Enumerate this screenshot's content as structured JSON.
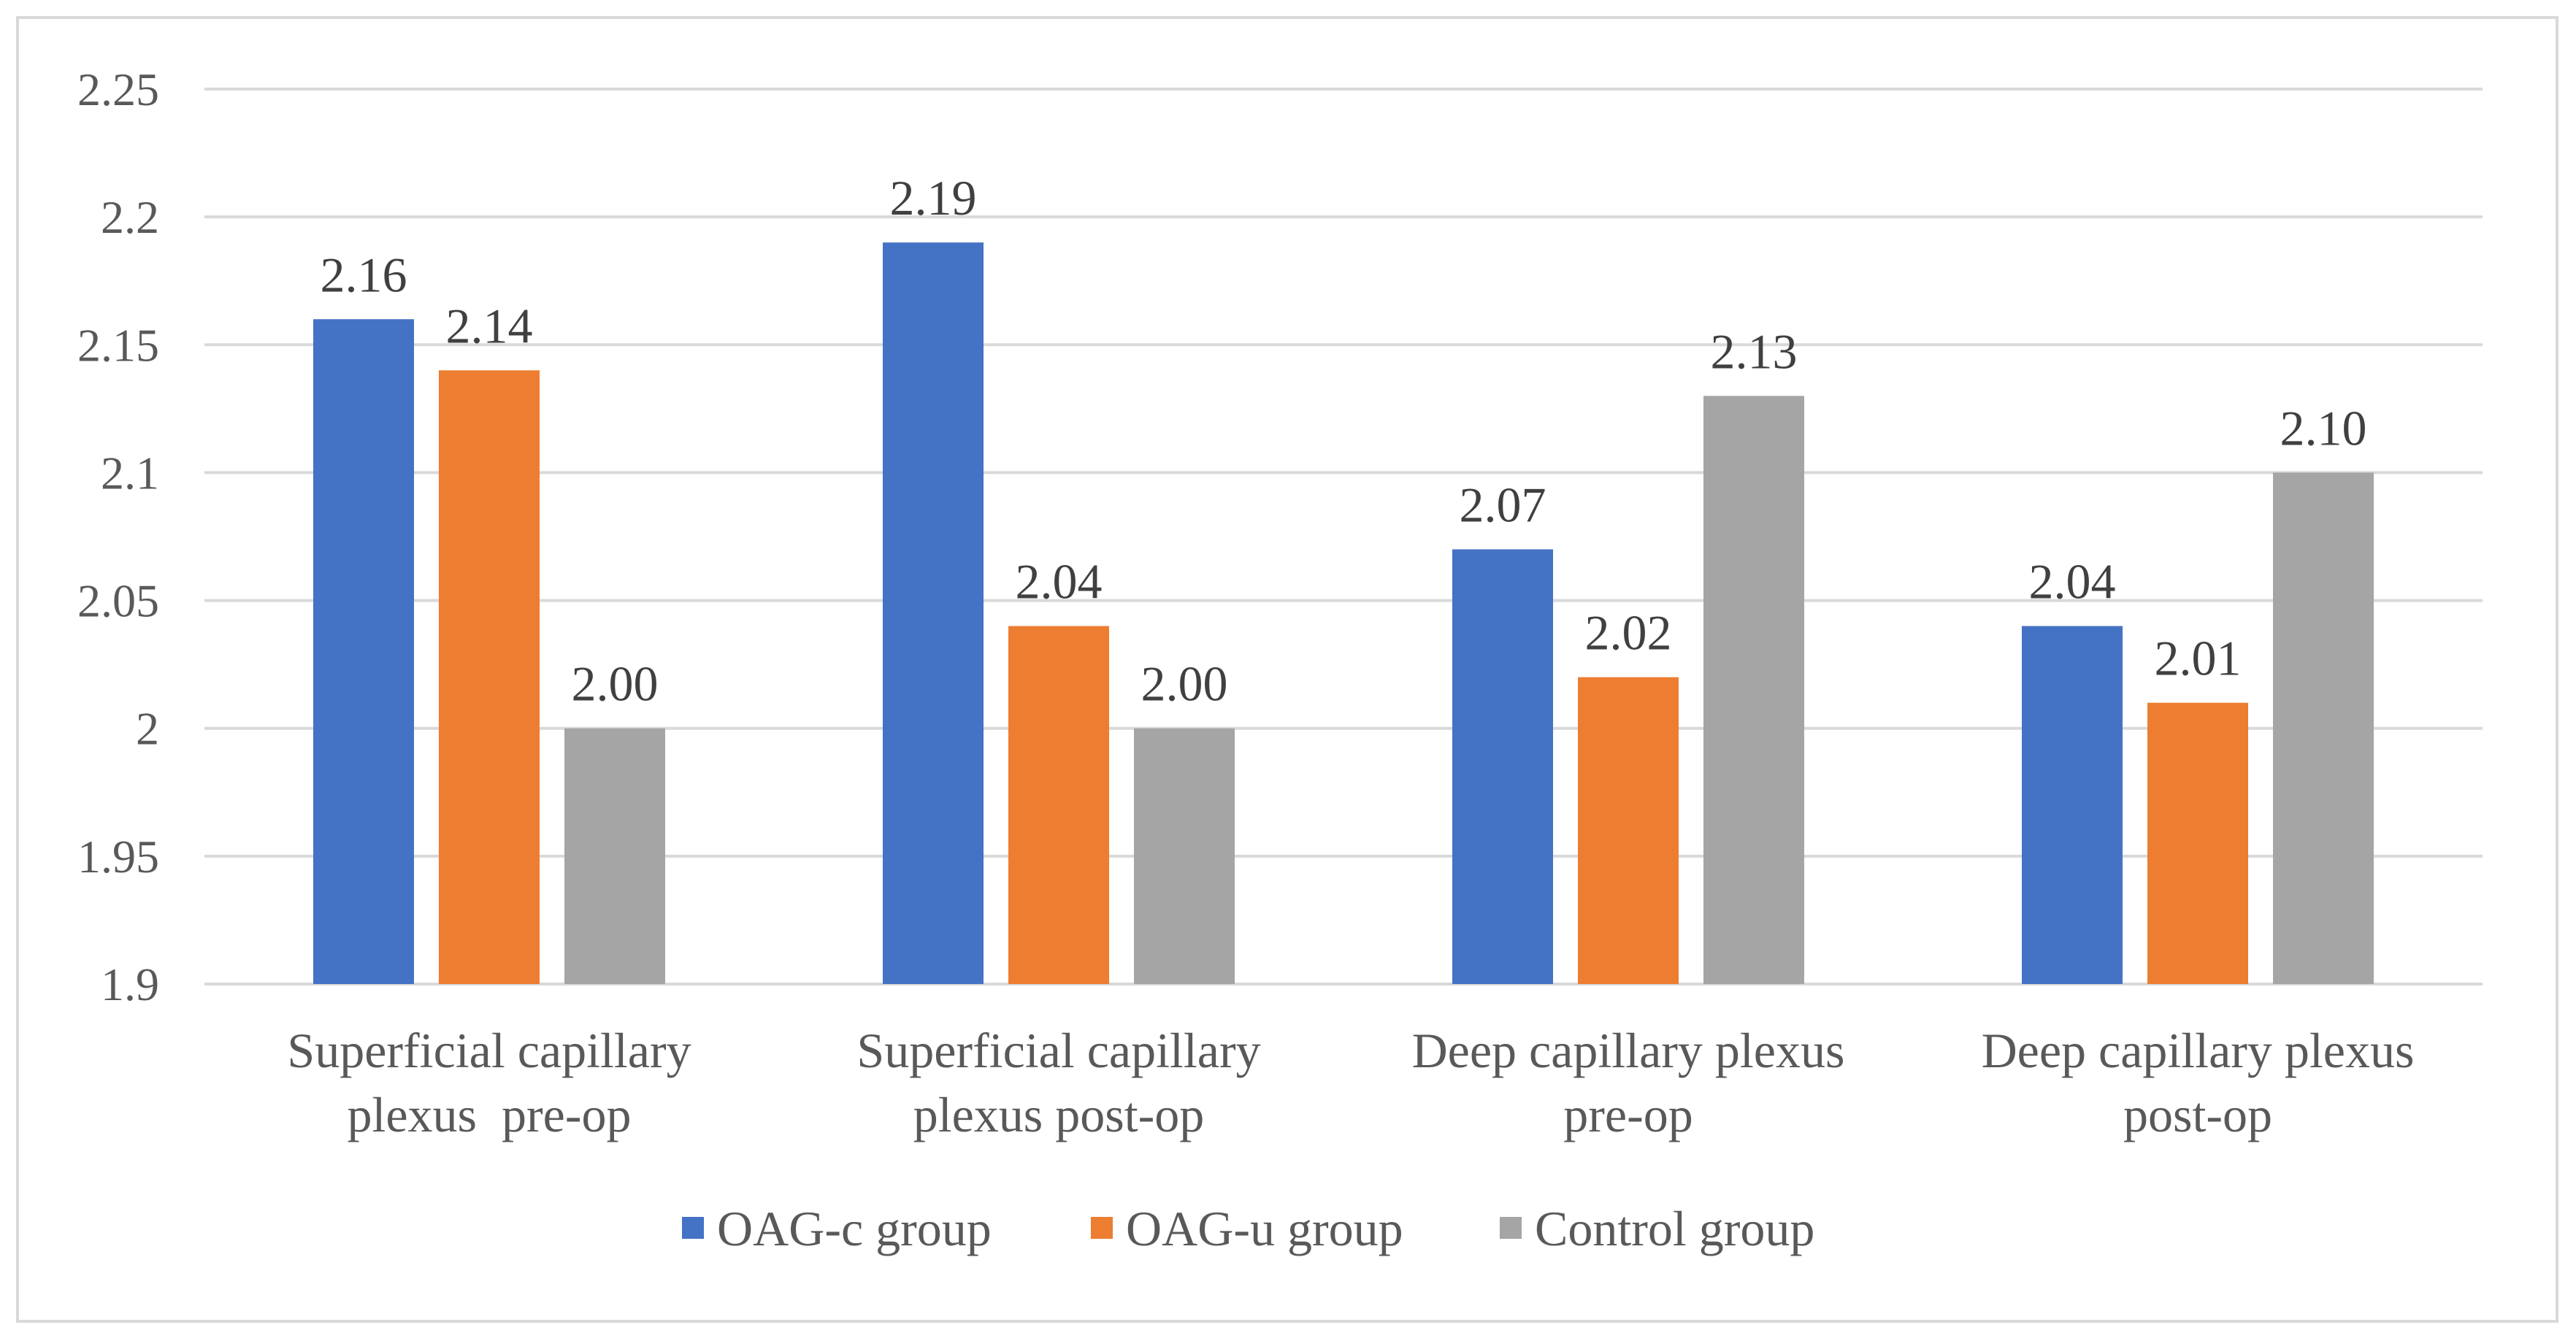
{
  "chart_data": {
    "type": "bar",
    "title": "",
    "xlabel": "",
    "ylabel": "",
    "ylim": [
      1.9,
      2.25
    ],
    "yticks": [
      "2.25",
      "2.2",
      "2.15",
      "2.1",
      "2.05",
      "2",
      "1.95",
      "1.9"
    ],
    "ytick_values": [
      2.25,
      2.2,
      2.15,
      2.1,
      2.05,
      2.0,
      1.95,
      1.9
    ],
    "grid": true,
    "legend_position": "bottom",
    "categories": [
      [
        "Superficial capillary",
        "plexus  pre-op"
      ],
      [
        "Superficial capillary",
        "plexus post-op"
      ],
      [
        "Deep capillary plexus",
        "pre-op"
      ],
      [
        "Deep capillary plexus",
        "post-op"
      ]
    ],
    "series": [
      {
        "name": "OAG-c group",
        "color": "#4472C4",
        "values": [
          2.16,
          2.19,
          2.07,
          2.04
        ],
        "labels": [
          "2.16",
          "2.19",
          "2.07",
          "2.04"
        ]
      },
      {
        "name": "OAG-u group",
        "color": "#ED7D31",
        "values": [
          2.14,
          2.04,
          2.02,
          2.01
        ],
        "labels": [
          "2.14",
          "2.04",
          "2.02",
          "2.01"
        ]
      },
      {
        "name": "Control group",
        "color": "#A5A5A5",
        "values": [
          2.0,
          2.0,
          2.13,
          2.1
        ],
        "labels": [
          "2.00",
          "2.00",
          "2.13",
          "2.10"
        ]
      }
    ]
  }
}
